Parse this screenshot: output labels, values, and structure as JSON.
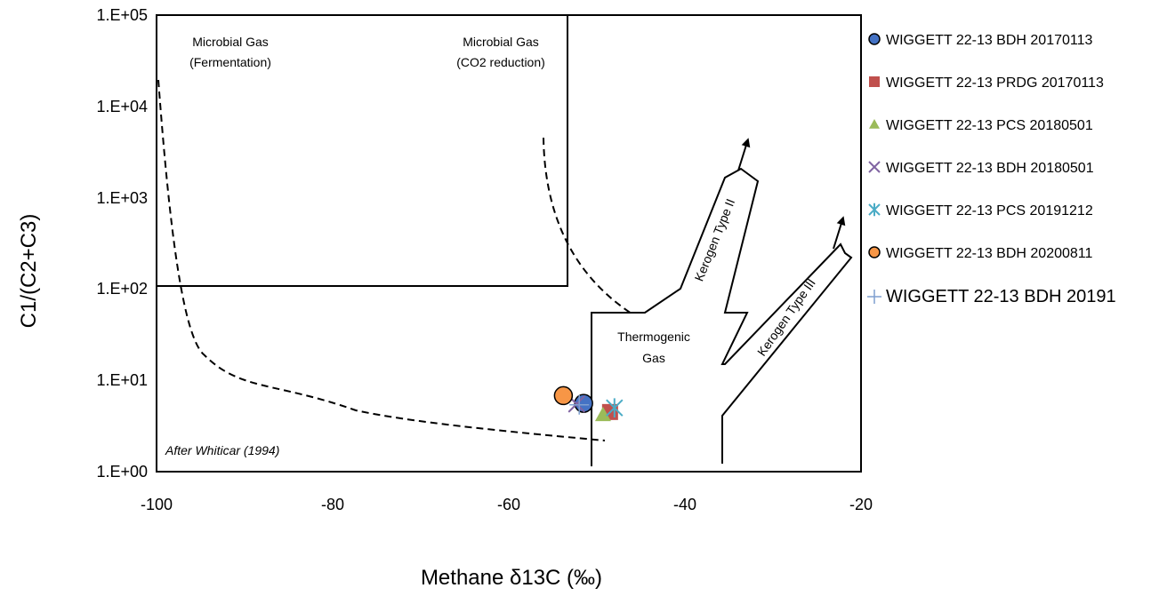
{
  "chart_data": {
    "type": "scatter",
    "title": "",
    "xlabel": "Methane δ13C (‰)",
    "ylabel": "C1/(C2+C3)",
    "xlim": [
      -100,
      -20
    ],
    "ylim": [
      1,
      100000
    ],
    "y_scale": "log",
    "x_ticks": [
      "-100",
      "-80",
      "-60",
      "-40",
      "-20"
    ],
    "y_ticks": [
      "1.E+00",
      "1.E+01",
      "1.E+02",
      "1.E+03",
      "1.E+04",
      "1.E+05"
    ],
    "grid": false,
    "legend_position": "right",
    "regions": [
      {
        "key": "ferm1",
        "text": "Microbial Gas"
      },
      {
        "key": "ferm2",
        "text": "(Fermentation)"
      },
      {
        "key": "co2a",
        "text": "Microbial Gas"
      },
      {
        "key": "co2b",
        "text": "(CO2 reduction)"
      },
      {
        "key": "thermo1",
        "text": "Thermogenic"
      },
      {
        "key": "thermo2",
        "text": "Gas"
      },
      {
        "key": "k2",
        "text": "Kerogen Type II"
      },
      {
        "key": "k3",
        "text": "Kerogen Type III"
      }
    ],
    "annotation": "After Whiticar (1994)",
    "series": [
      {
        "name": "WIGGETT 22-13 BDH 20170113",
        "marker": "circle",
        "color": "#4472C4",
        "x": -51.5,
        "y": 5.6
      },
      {
        "name": "WIGGETT 22-13 PRDG 20170113",
        "marker": "square",
        "color": "#C0504D",
        "x": -48.5,
        "y": 4.5
      },
      {
        "name": "WIGGETT 22-13 PCS 20180501",
        "marker": "triangle",
        "color": "#9BBB59",
        "x": -49.3,
        "y": 4.2
      },
      {
        "name": "WIGGETT 22-13 BDH 20180501",
        "marker": "x",
        "color": "#8064A2",
        "x": -52.3,
        "y": 5.5
      },
      {
        "name": "WIGGETT 22-13 PCS 20191212",
        "marker": "star",
        "color": "#4BACC6",
        "x": -48.0,
        "y": 5.0
      },
      {
        "name": "WIGGETT 22-13 BDH 20200811",
        "marker": "circle",
        "color": "#F79646",
        "x": -53.8,
        "y": 6.8
      },
      {
        "name": "WIGGETT 22-13 BDH 20191",
        "marker": "plus",
        "color": "#7F9FCF",
        "x": -52.0,
        "y": 5.4
      }
    ]
  }
}
